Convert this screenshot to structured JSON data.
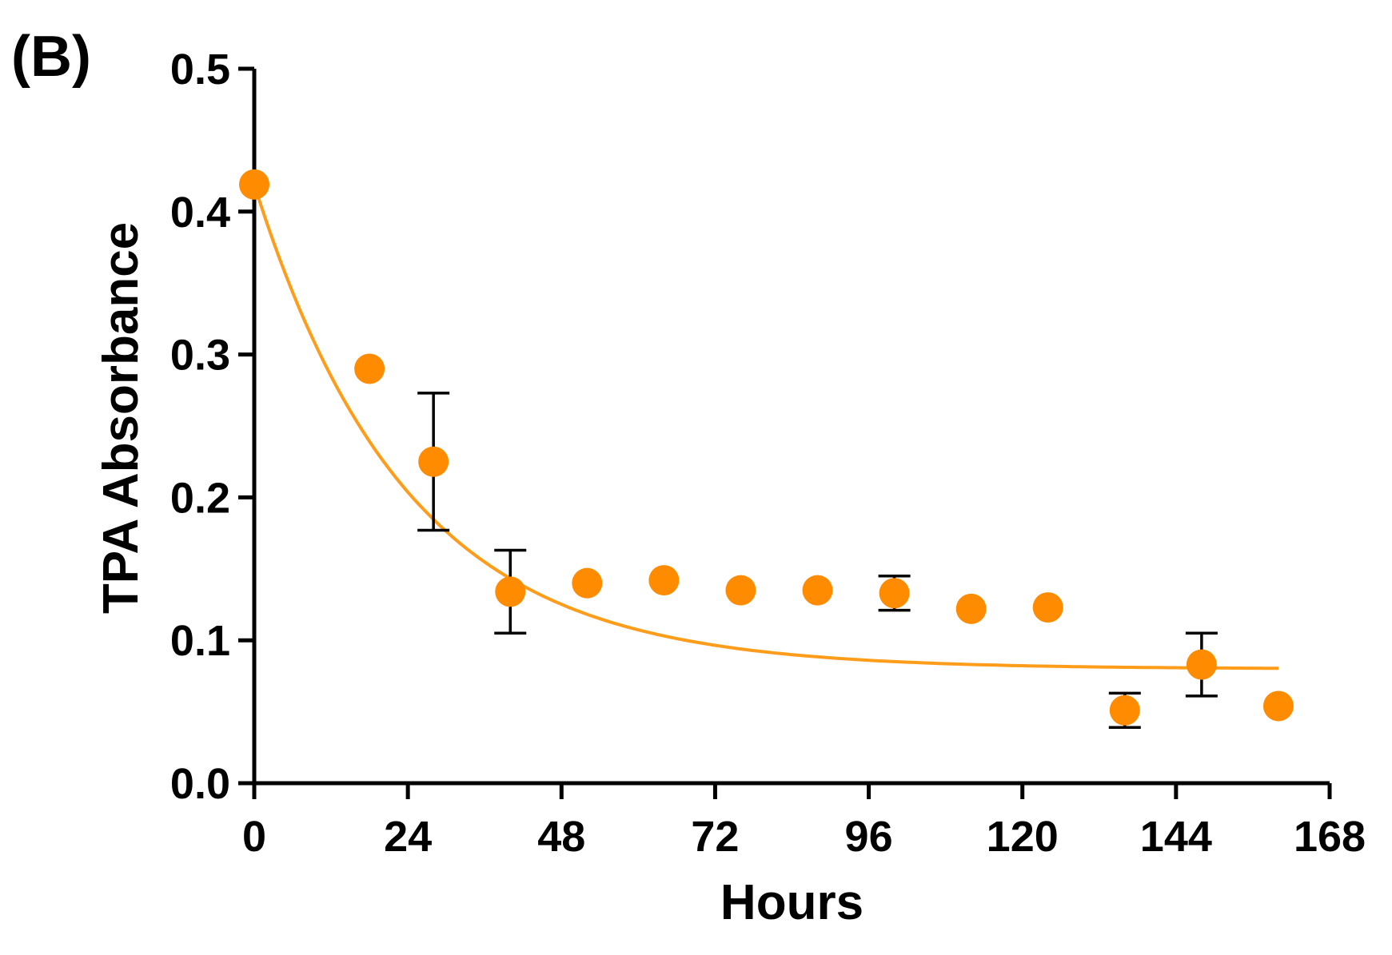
{
  "panel_label": "(B)",
  "colors": {
    "series": "#FF8C00",
    "fit_line": "#FF9C1A",
    "axis": "#000000"
  },
  "chart_data": {
    "type": "scatter",
    "title": "",
    "xlabel": "Hours",
    "ylabel": "TPA Absorbance",
    "xlim": [
      0,
      168
    ],
    "ylim": [
      0,
      0.5
    ],
    "xticks": [
      0,
      24,
      48,
      72,
      96,
      120,
      144,
      168
    ],
    "xtick_labels": [
      "0",
      "24",
      "48",
      "72",
      "96",
      "120",
      "144",
      "168"
    ],
    "yticks": [
      0,
      0.1,
      0.2,
      0.3,
      0.4,
      0.5
    ],
    "ytick_labels": [
      "0.0",
      "0.1",
      "0.2",
      "0.3",
      "0.4",
      "0.5"
    ],
    "grid": false,
    "legend": "none",
    "series": [
      {
        "name": "TPA",
        "x": [
          0,
          18,
          28,
          40,
          52,
          64,
          76,
          88,
          100,
          112,
          124,
          136,
          148,
          160
        ],
        "y": [
          0.419,
          0.29,
          0.225,
          0.134,
          0.14,
          0.142,
          0.135,
          0.135,
          0.133,
          0.122,
          0.123,
          0.051,
          0.083,
          0.054
        ],
        "error": [
          0,
          0,
          0.048,
          0.029,
          0,
          0,
          0,
          0,
          0.012,
          0,
          0,
          0.012,
          0.022,
          0
        ]
      }
    ],
    "fit": {
      "type": "one-phase exponential decay",
      "y0": 0.419,
      "plateau": 0.08,
      "k": 0.042,
      "x_range": [
        0,
        160
      ]
    }
  }
}
